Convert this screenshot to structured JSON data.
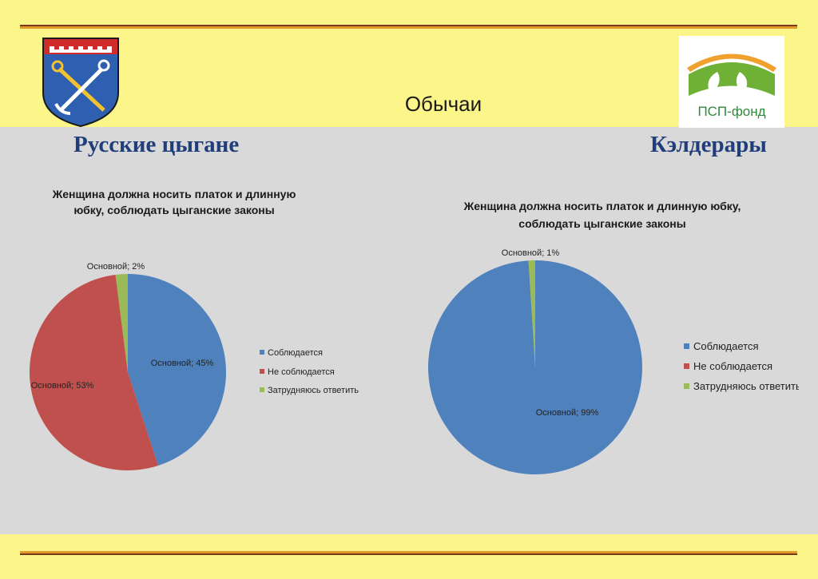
{
  "slide": {
    "title": "Обычаи"
  },
  "logo": {
    "text": "ПСП-фонд"
  },
  "sections": {
    "left": "Русские цыгане",
    "right": "Кэлдерары"
  },
  "colors": {
    "blue": "#4f81bd",
    "red": "#c0504d",
    "green": "#9bbb59",
    "title_blue": "#1f3e7a"
  },
  "chart_data": [
    {
      "type": "pie",
      "title_lines": [
        "Женщина должна носить платок и длинную",
        "юбку, соблюдать цыганские законы"
      ],
      "categories": [
        "Соблюдается",
        "Не соблюдается",
        "Затрудняюсь ответить"
      ],
      "values": [
        45,
        53,
        2
      ],
      "data_labels": [
        "Основной; 45%",
        "Основной; 53%",
        "Основной; 2%"
      ],
      "legend": "right"
    },
    {
      "type": "pie",
      "title_lines": [
        "Женщина должна носить платок и длинную юбку,",
        "соблюдать цыганские законы"
      ],
      "categories": [
        "Соблюдается",
        "Не соблюдается",
        "Затрудняюсь ответить"
      ],
      "values": [
        99,
        0,
        1
      ],
      "data_labels": [
        "Основной; 99%",
        "",
        "Основной; 1%"
      ],
      "legend": "right"
    }
  ]
}
